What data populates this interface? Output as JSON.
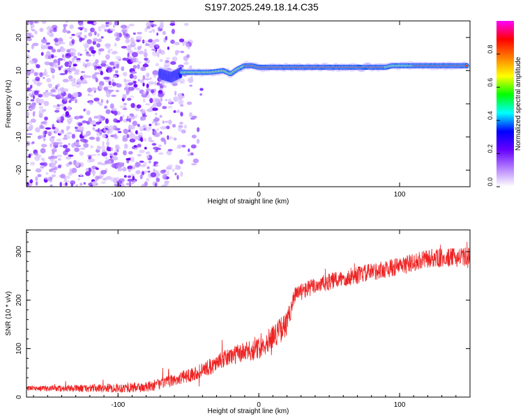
{
  "title": "S197.2025.249.18.14.C35",
  "spectrogram": {
    "type": "heatmap",
    "xlabel": "Height of straight line (km)",
    "ylabel": "Frequency (Hz)",
    "xlim": [
      -165,
      150
    ],
    "ylim": [
      -25,
      25
    ],
    "xticks": [
      -100,
      0,
      100
    ],
    "yticks": [
      -20,
      -10,
      0,
      10,
      20
    ],
    "ridge": {
      "x": [
        -70,
        -62,
        -55,
        -45,
        -35,
        -25,
        -20,
        -15,
        -10,
        -5,
        0,
        20,
        40,
        60,
        80,
        90,
        95,
        100,
        120,
        140,
        148
      ],
      "y": [
        9,
        8,
        9.5,
        9.5,
        9.5,
        10,
        9,
        10.5,
        11.5,
        11.5,
        11,
        11,
        11,
        11,
        11,
        11,
        11.5,
        11.5,
        11.5,
        11.5,
        11.5
      ]
    },
    "noise_region_x": [
      -165,
      -40
    ]
  },
  "colorbar": {
    "label": "Normalized spectral amplitude",
    "ticks": [
      "0.0",
      "0.2",
      "0.4",
      "0.6",
      "0.8"
    ],
    "tick_values": [
      0,
      0.2,
      0.4,
      0.6,
      0.8
    ],
    "range": [
      0,
      1
    ],
    "colors": [
      "#ffffff",
      "#b580ff",
      "#6600ff",
      "#0000ff",
      "#00ffff",
      "#00ff00",
      "#ffff00",
      "#ff8000",
      "#ff0000",
      "#ff00ff"
    ]
  },
  "snr": {
    "type": "line",
    "xlabel": "Height of straight line (km)",
    "ylabel": "SNR (10 * v/v)",
    "xlim": [
      -165,
      150
    ],
    "ylim": [
      0,
      345
    ],
    "xticks": [
      -100,
      0,
      100
    ],
    "yticks": [
      0,
      100,
      200,
      300
    ],
    "line_color": "#ee2222",
    "trend_x": [
      -165,
      -120,
      -80,
      -60,
      -40,
      -20,
      0,
      10,
      20,
      25,
      40,
      60,
      80,
      100,
      120,
      150
    ],
    "trend_y": [
      18,
      18,
      20,
      35,
      55,
      85,
      100,
      125,
      150,
      210,
      230,
      245,
      258,
      270,
      285,
      290
    ],
    "noise_amp_x": [
      -165,
      -60,
      0,
      20,
      25,
      150
    ],
    "noise_amp_y": [
      10,
      25,
      45,
      55,
      35,
      40
    ]
  }
}
